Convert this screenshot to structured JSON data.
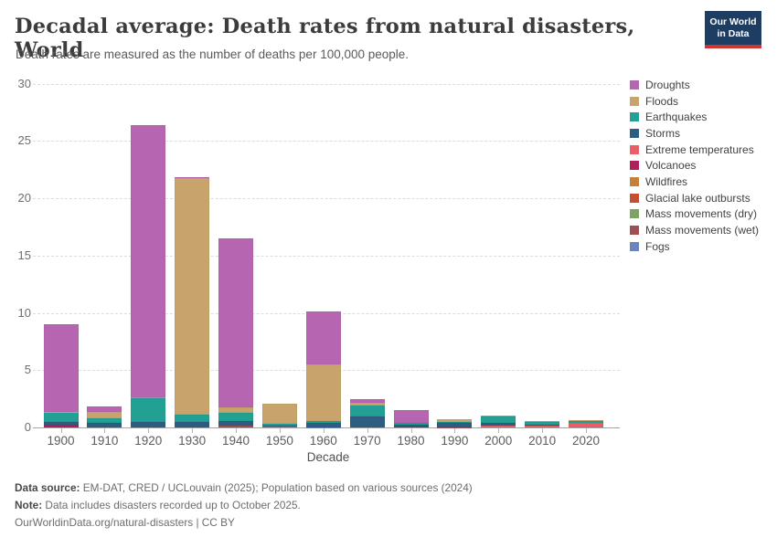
{
  "header": {
    "title": "Decadal average: Death rates from natural disasters, World",
    "subtitle": "Death rates are measured as the number of deaths per 100,000 people.",
    "logo": {
      "line1": "Our World",
      "line2": "in Data",
      "bg_color": "#1d3d63",
      "accent_color": "#d0342c"
    }
  },
  "chart_data": {
    "type": "bar",
    "stacked": true,
    "title": "Decadal average: Death rates from natural disasters, World",
    "xlabel": "Decade",
    "ylabel": "",
    "ylim": [
      0,
      30
    ],
    "yticks": [
      0,
      5,
      10,
      15,
      20,
      25,
      30
    ],
    "grid": "dashed-horizontal",
    "legend_position": "right",
    "categories": [
      "1900",
      "1910",
      "1920",
      "1930",
      "1940",
      "1950",
      "1960",
      "1970",
      "1980",
      "1990",
      "2000",
      "2010",
      "2020"
    ],
    "series": [
      {
        "name": "Droughts",
        "color": "#b666b0",
        "values": [
          7.6,
          0.5,
          23.8,
          0.05,
          14.7,
          0,
          4.55,
          0.35,
          1.15,
          0,
          0,
          0,
          0
        ]
      },
      {
        "name": "Floods",
        "color": "#c8a46c",
        "values": [
          0.05,
          0.55,
          0.05,
          20.6,
          0.5,
          1.8,
          5.0,
          0.2,
          0,
          0.2,
          0.1,
          0.08,
          0.1
        ]
      },
      {
        "name": "Earthquakes",
        "color": "#23a094",
        "values": [
          0.9,
          0.45,
          2.05,
          0.7,
          0.7,
          0.1,
          0.12,
          1.0,
          0.15,
          0.12,
          0.55,
          0.3,
          0.18
        ]
      },
      {
        "name": "Storms",
        "color": "#2d5e82",
        "values": [
          0.18,
          0.37,
          0.5,
          0.45,
          0.45,
          0.12,
          0.38,
          0.95,
          0.2,
          0.33,
          0.28,
          0.05,
          0
        ]
      },
      {
        "name": "Extreme temperatures",
        "color": "#eb5e67",
        "values": [
          0,
          0,
          0,
          0,
          0,
          0,
          0,
          0,
          0,
          0,
          0.12,
          0.15,
          0.38
        ]
      },
      {
        "name": "Volcanoes",
        "color": "#ae1f5c",
        "values": [
          0.26,
          0,
          0,
          0,
          0,
          0,
          0,
          0,
          0.05,
          0,
          0,
          0,
          0
        ]
      },
      {
        "name": "Wildfires",
        "color": "#c57f3a",
        "values": [
          0,
          0,
          0,
          0,
          0,
          0,
          0,
          0,
          0,
          0,
          0,
          0,
          0
        ]
      },
      {
        "name": "Glacial lake outbursts",
        "color": "#c24f31",
        "values": [
          0,
          0,
          0,
          0,
          0,
          0,
          0,
          0,
          0,
          0,
          0,
          0,
          0
        ]
      },
      {
        "name": "Mass movements (dry)",
        "color": "#7aa364",
        "values": [
          0,
          0,
          0,
          0,
          0,
          0,
          0,
          0,
          0,
          0,
          0,
          0,
          0
        ]
      },
      {
        "name": "Mass movements (wet)",
        "color": "#9e4e55",
        "values": [
          0,
          0,
          0,
          0,
          0.12,
          0,
          0,
          0,
          0,
          0.03,
          0,
          0,
          0
        ]
      },
      {
        "name": "Fogs",
        "color": "#6c84bd",
        "values": [
          0,
          0,
          0,
          0,
          0,
          0.06,
          0.03,
          0,
          0,
          0,
          0,
          0,
          0
        ]
      }
    ]
  },
  "footer": {
    "source_label": "Data source:",
    "source_text": " EM-DAT, CRED / UCLouvain (2025); Population based on various sources (2024)",
    "note_label": "Note:",
    "note_text": " Data includes disasters recorded up to October 2025.",
    "license": "OurWorldinData.org/natural-disasters | CC BY"
  }
}
